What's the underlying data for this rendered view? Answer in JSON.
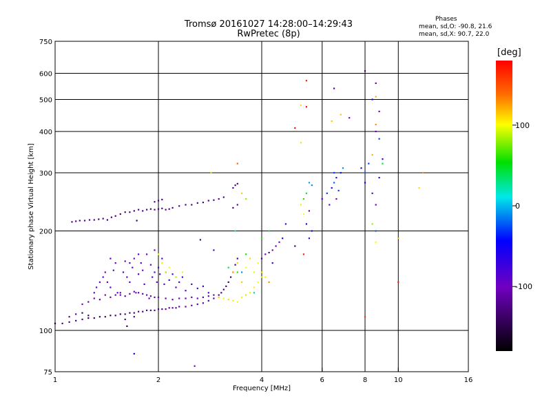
{
  "title": "Tromsø 20161027 14:28:00–14:29:43",
  "subtitle": "RwPretec (8p)",
  "stats": {
    "heading": "Phases",
    "o_line": "mean, sd,O: -90.8, 21.6",
    "x_line": "mean, sd,X:  90.7, 22.0"
  },
  "colorbar": {
    "unit_label": "[deg]",
    "tick_labels": [
      "100",
      "0",
      "-100"
    ],
    "tick_values": [
      100,
      0,
      -100
    ],
    "range": [
      -180,
      180
    ]
  },
  "chart_data": {
    "type": "scatter",
    "xlabel": "Frequency [MHz]",
    "ylabel": "Stationary phase Virtual Height [km]",
    "xscale": "log",
    "yscale": "log",
    "xlim": [
      1,
      16
    ],
    "ylim": [
      75,
      750
    ],
    "xticks": [
      1,
      2,
      4,
      6,
      8,
      10,
      16
    ],
    "xtick_labels": [
      "1",
      "2",
      "4",
      "6",
      "8",
      "10",
      "16"
    ],
    "yticks": [
      75,
      100,
      200,
      300,
      400,
      500,
      600,
      750
    ],
    "ytick_labels": [
      "75",
      "100",
      "200",
      "300",
      "400",
      "500",
      "600",
      "750"
    ],
    "xgrid": [
      2,
      4,
      6,
      8,
      10
    ],
    "ygrid": [
      100,
      200,
      300,
      400,
      500,
      600
    ],
    "grid": true,
    "point_columns": [
      "frequency_MHz",
      "height_km",
      "phase_deg"
    ],
    "points": [
      [
        1.0,
        105,
        -130
      ],
      [
        1.05,
        105,
        -125
      ],
      [
        1.1,
        106,
        -125
      ],
      [
        1.15,
        107,
        -130
      ],
      [
        1.2,
        108,
        -135
      ],
      [
        1.25,
        109,
        -140
      ],
      [
        1.3,
        109,
        -140
      ],
      [
        1.35,
        110,
        -145
      ],
      [
        1.4,
        110,
        -140
      ],
      [
        1.45,
        111,
        -140
      ],
      [
        1.5,
        111,
        -135
      ],
      [
        1.55,
        112,
        -135
      ],
      [
        1.6,
        112,
        -130
      ],
      [
        1.65,
        113,
        -130
      ],
      [
        1.7,
        113,
        -125
      ],
      [
        1.75,
        114,
        -125
      ],
      [
        1.8,
        114,
        -125
      ],
      [
        1.85,
        115,
        -120
      ],
      [
        1.9,
        115,
        -120
      ],
      [
        1.95,
        115,
        -120
      ],
      [
        2.0,
        116,
        -120
      ],
      [
        2.05,
        116,
        -120
      ],
      [
        2.1,
        116,
        -120
      ],
      [
        2.15,
        117,
        -120
      ],
      [
        2.2,
        117,
        -118
      ],
      [
        2.25,
        117,
        -118
      ],
      [
        2.3,
        118,
        -118
      ],
      [
        2.4,
        118,
        -118
      ],
      [
        2.5,
        119,
        -115
      ],
      [
        2.6,
        120,
        -115
      ],
      [
        2.7,
        121,
        -115
      ],
      [
        2.8,
        123,
        -115
      ],
      [
        2.9,
        125,
        -115
      ],
      [
        3.0,
        128,
        -120
      ],
      [
        3.05,
        130,
        -125
      ],
      [
        3.1,
        133,
        -130
      ],
      [
        3.15,
        136,
        -135
      ],
      [
        3.2,
        140,
        -140
      ],
      [
        3.25,
        145,
        -140
      ],
      [
        3.3,
        150,
        -135
      ],
      [
        3.35,
        158,
        -130
      ],
      [
        3.4,
        165,
        -125
      ],
      [
        1.1,
        110,
        -125
      ],
      [
        1.15,
        112,
        -120
      ],
      [
        1.2,
        113,
        -140
      ],
      [
        1.25,
        111,
        -145
      ],
      [
        1.12,
        213,
        -125
      ],
      [
        1.15,
        214,
        -125
      ],
      [
        1.18,
        215,
        -130
      ],
      [
        1.22,
        215,
        -125
      ],
      [
        1.26,
        216,
        -125
      ],
      [
        1.3,
        216,
        -125
      ],
      [
        1.34,
        217,
        -130
      ],
      [
        1.38,
        218,
        -125
      ],
      [
        1.42,
        216,
        -135
      ],
      [
        1.46,
        220,
        -125
      ],
      [
        1.5,
        222,
        -130
      ],
      [
        1.55,
        225,
        -125
      ],
      [
        1.6,
        228,
        -125
      ],
      [
        1.65,
        228,
        -125
      ],
      [
        1.7,
        230,
        -130
      ],
      [
        1.75,
        232,
        -125
      ],
      [
        1.8,
        230,
        -120
      ],
      [
        1.85,
        232,
        -125
      ],
      [
        1.9,
        233,
        -125
      ],
      [
        1.95,
        232,
        -125
      ],
      [
        2.0,
        233,
        -125
      ],
      [
        2.05,
        234,
        -120
      ],
      [
        2.1,
        232,
        -125
      ],
      [
        2.15,
        233,
        -125
      ],
      [
        2.2,
        235,
        -125
      ],
      [
        2.3,
        238,
        -125
      ],
      [
        2.4,
        240,
        -125
      ],
      [
        2.5,
        240,
        -125
      ],
      [
        2.6,
        243,
        -125
      ],
      [
        2.7,
        244,
        -125
      ],
      [
        2.8,
        247,
        -125
      ],
      [
        2.9,
        248,
        -125
      ],
      [
        3.0,
        250,
        -125
      ],
      [
        3.1,
        253,
        -125
      ],
      [
        1.95,
        245,
        -125
      ],
      [
        2.0,
        247,
        -130
      ],
      [
        2.05,
        249,
        -125
      ],
      [
        1.73,
        215,
        -140
      ],
      [
        1.3,
        130,
        -100
      ],
      [
        1.32,
        135,
        -95
      ],
      [
        1.35,
        140,
        -100
      ],
      [
        1.38,
        145,
        -90
      ],
      [
        1.4,
        150,
        -95
      ],
      [
        1.42,
        140,
        -95
      ],
      [
        1.45,
        135,
        -85
      ],
      [
        1.48,
        152,
        -90
      ],
      [
        1.5,
        160,
        -100
      ],
      [
        1.52,
        130,
        -90
      ],
      [
        1.55,
        128,
        -100
      ],
      [
        1.58,
        150,
        -85
      ],
      [
        1.6,
        162,
        -100
      ],
      [
        1.62,
        145,
        -90
      ],
      [
        1.65,
        140,
        -80
      ],
      [
        1.68,
        155,
        -95
      ],
      [
        1.7,
        165,
        -100
      ],
      [
        1.72,
        130,
        -100
      ],
      [
        1.75,
        148,
        -85
      ],
      [
        1.78,
        160,
        -90
      ],
      [
        1.8,
        152,
        -100
      ],
      [
        1.82,
        138,
        -85
      ],
      [
        1.85,
        170,
        -100
      ],
      [
        1.88,
        125,
        -95
      ],
      [
        1.9,
        158,
        -90
      ],
      [
        1.92,
        145,
        -85
      ],
      [
        1.95,
        150,
        -90
      ],
      [
        1.98,
        140,
        -95
      ],
      [
        2.0,
        155,
        -85
      ],
      [
        2.02,
        148,
        -80
      ],
      [
        2.05,
        165,
        -90
      ],
      [
        2.08,
        138,
        -95
      ],
      [
        2.1,
        150,
        -85
      ],
      [
        2.15,
        142,
        -75
      ],
      [
        2.2,
        148,
        -80
      ],
      [
        2.25,
        135,
        -90
      ],
      [
        2.3,
        140,
        -70
      ],
      [
        2.35,
        145,
        -80
      ],
      [
        2.4,
        132,
        -90
      ],
      [
        2.5,
        138,
        -75
      ],
      [
        2.6,
        134,
        -80
      ],
      [
        2.7,
        136,
        -75
      ],
      [
        2.8,
        130,
        -85
      ],
      [
        1.45,
        165,
        -90
      ],
      [
        1.65,
        160,
        -85
      ],
      [
        1.95,
        175,
        -95
      ],
      [
        1.75,
        170,
        -80
      ],
      [
        1.2,
        120,
        -105
      ],
      [
        1.25,
        122,
        -110
      ],
      [
        1.3,
        125,
        -105
      ],
      [
        1.35,
        124,
        -110
      ],
      [
        1.4,
        128,
        -105
      ],
      [
        1.45,
        126,
        -110
      ],
      [
        1.5,
        128,
        -110
      ],
      [
        1.55,
        130,
        -105
      ],
      [
        1.6,
        127,
        -110
      ],
      [
        1.65,
        129,
        -110
      ],
      [
        1.7,
        131,
        -105
      ],
      [
        1.75,
        130,
        -110
      ],
      [
        1.8,
        129,
        -110
      ],
      [
        1.85,
        128,
        -105
      ],
      [
        1.9,
        127,
        -110
      ],
      [
        1.95,
        126,
        -110
      ],
      [
        2.0,
        126,
        -105
      ],
      [
        2.1,
        125,
        -110
      ],
      [
        2.2,
        124,
        -110
      ],
      [
        2.3,
        125,
        -105
      ],
      [
        2.4,
        125,
        -110
      ],
      [
        2.5,
        126,
        -110
      ],
      [
        2.6,
        125,
        -105
      ],
      [
        2.7,
        126,
        -110
      ],
      [
        2.8,
        127,
        -110
      ],
      [
        2.9,
        128,
        -110
      ],
      [
        1.6,
        108,
        -130
      ],
      [
        1.7,
        110,
        -125
      ],
      [
        1.62,
        103,
        -150
      ],
      [
        1.7,
        85,
        -55
      ],
      [
        2.55,
        78,
        -100
      ],
      [
        2.85,
        300,
        85
      ],
      [
        3.4,
        320,
        140
      ],
      [
        2.65,
        188,
        -130
      ],
      [
        2.9,
        175,
        -80
      ],
      [
        2.0,
        170,
        100
      ],
      [
        2.05,
        160,
        95
      ],
      [
        2.1,
        150,
        90
      ],
      [
        2.15,
        155,
        100
      ],
      [
        2.25,
        145,
        85
      ],
      [
        2.35,
        150,
        95
      ],
      [
        3.3,
        270,
        -125
      ],
      [
        3.35,
        275,
        -120
      ],
      [
        3.4,
        278,
        -125
      ],
      [
        3.3,
        235,
        -130
      ],
      [
        3.4,
        240,
        -115
      ],
      [
        3.5,
        260,
        115
      ],
      [
        3.6,
        250,
        80
      ],
      [
        3.0,
        126,
        115
      ],
      [
        3.1,
        125,
        100
      ],
      [
        3.2,
        124,
        110
      ],
      [
        3.3,
        123,
        105
      ],
      [
        3.4,
        122,
        100
      ],
      [
        3.5,
        126,
        105
      ],
      [
        3.6,
        128,
        110
      ],
      [
        3.7,
        130,
        95
      ],
      [
        3.8,
        135,
        105
      ],
      [
        3.9,
        140,
        100
      ],
      [
        4.0,
        145,
        95
      ],
      [
        3.3,
        150,
        120
      ],
      [
        3.4,
        160,
        110
      ],
      [
        3.5,
        140,
        115
      ],
      [
        3.6,
        155,
        100
      ],
      [
        3.7,
        165,
        110
      ],
      [
        3.8,
        150,
        95
      ],
      [
        3.9,
        160,
        100
      ],
      [
        4.0,
        150,
        110
      ],
      [
        4.1,
        145,
        105
      ],
      [
        3.2,
        155,
        40
      ],
      [
        3.4,
        150,
        60
      ],
      [
        3.6,
        170,
        55
      ],
      [
        3.8,
        130,
        30
      ],
      [
        3.5,
        150,
        -10
      ],
      [
        3.35,
        200,
        20
      ],
      [
        4.0,
        165,
        -130
      ],
      [
        4.1,
        170,
        -110
      ],
      [
        4.2,
        172,
        -125
      ],
      [
        4.3,
        175,
        -105
      ],
      [
        4.4,
        180,
        -110
      ],
      [
        4.5,
        185,
        -100
      ],
      [
        4.3,
        160,
        -70
      ],
      [
        4.6,
        190,
        -55
      ],
      [
        4.7,
        210,
        -80
      ],
      [
        4.2,
        200,
        45
      ],
      [
        4.0,
        190,
        60
      ],
      [
        4.2,
        140,
        130
      ],
      [
        5.2,
        240,
        95
      ],
      [
        5.3,
        250,
        60
      ],
      [
        5.4,
        260,
        40
      ],
      [
        5.3,
        225,
        100
      ],
      [
        5.5,
        280,
        -5
      ],
      [
        5.6,
        275,
        -10
      ],
      [
        5.5,
        190,
        -75
      ],
      [
        5.6,
        200,
        -40
      ],
      [
        5.4,
        210,
        -60
      ],
      [
        5.5,
        230,
        -110
      ],
      [
        5.3,
        170,
        170
      ],
      [
        5.0,
        180,
        -135
      ],
      [
        5.0,
        410,
        175
      ],
      [
        5.2,
        480,
        110
      ],
      [
        5.2,
        370,
        110
      ],
      [
        5.4,
        570,
        170
      ],
      [
        5.4,
        475,
        175
      ],
      [
        6.4,
        430,
        115
      ],
      [
        6.8,
        450,
        115
      ],
      [
        6.5,
        540,
        -120
      ],
      [
        7.2,
        440,
        -100
      ],
      [
        6.0,
        250,
        -80
      ],
      [
        6.2,
        260,
        -30
      ],
      [
        6.4,
        270,
        -60
      ],
      [
        6.5,
        280,
        -20
      ],
      [
        6.6,
        290,
        -70
      ],
      [
        6.8,
        300,
        -40
      ],
      [
        6.9,
        310,
        -10
      ],
      [
        6.3,
        240,
        -90
      ],
      [
        6.7,
        265,
        -30
      ],
      [
        6.6,
        250,
        -105
      ],
      [
        6.5,
        300,
        -30
      ],
      [
        7.8,
        310,
        -40
      ],
      [
        8.0,
        300,
        -20
      ],
      [
        8.2,
        320,
        -30
      ],
      [
        8.0,
        280,
        -50
      ],
      [
        8.4,
        260,
        -80
      ],
      [
        8.6,
        240,
        -100
      ],
      [
        8.8,
        290,
        -60
      ],
      [
        9.0,
        330,
        -70
      ],
      [
        8.0,
        610,
        -130
      ],
      [
        8.6,
        560,
        -110
      ],
      [
        8.6,
        510,
        120
      ],
      [
        8.4,
        500,
        -45
      ],
      [
        8.8,
        460,
        -100
      ],
      [
        8.6,
        420,
        130
      ],
      [
        8.6,
        400,
        -100
      ],
      [
        8.8,
        380,
        -30
      ],
      [
        8.4,
        340,
        120
      ],
      [
        9.0,
        320,
        40
      ],
      [
        8.6,
        200,
        130
      ],
      [
        8.6,
        185,
        100
      ],
      [
        8.6,
        200,
        -20
      ],
      [
        8.4,
        210,
        80
      ],
      [
        8.0,
        110,
        160
      ],
      [
        10.0,
        190,
        120
      ],
      [
        10.0,
        140,
        170
      ],
      [
        11.5,
        270,
        110
      ],
      [
        11.8,
        300,
        130
      ]
    ]
  }
}
